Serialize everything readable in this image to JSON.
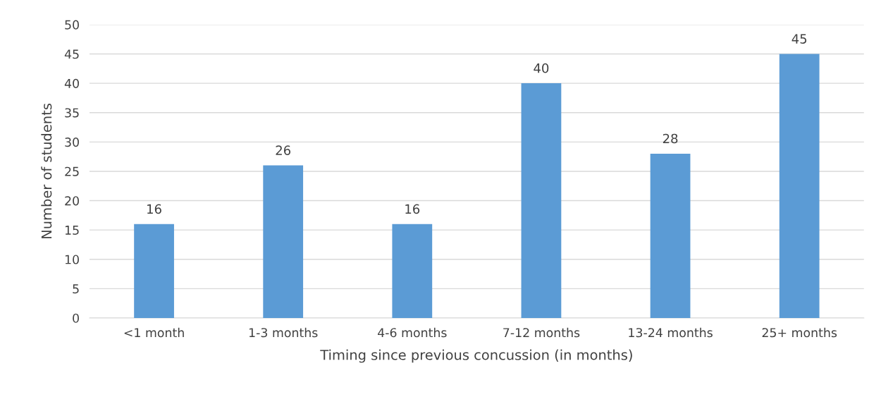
{
  "chart_data": {
    "type": "bar",
    "categories": [
      "<1 month",
      "1-3 months",
      "4-6 months",
      "7-12 months",
      "13-24 months",
      "25+ months"
    ],
    "values": [
      16,
      26,
      16,
      40,
      28,
      45
    ],
    "color": "#5b9bd5",
    "xlabel": "Timing since previous concussion (in months)",
    "ylabel": "Number of students",
    "ylim": [
      0,
      50
    ],
    "yticks": [
      0,
      5,
      10,
      15,
      20,
      25,
      30,
      35,
      40,
      45,
      50
    ],
    "grid": "y",
    "data_labels": true,
    "legend": false
  }
}
